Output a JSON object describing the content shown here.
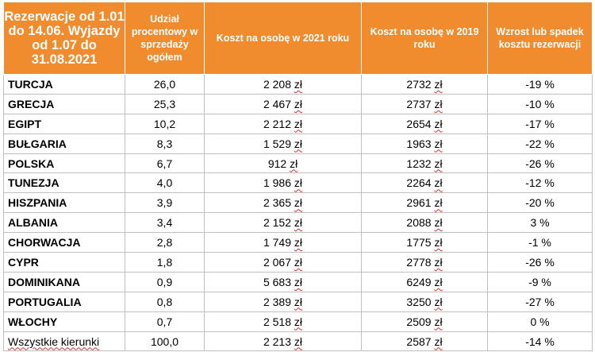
{
  "header": {
    "col1": "Rezerwacje od 1.01 do 14.06. Wyjazdy od 1.07 do 31.08.2021",
    "col2": "Udział procentowy w sprzedaży ogółem",
    "col3": "Koszt na osobę w 2021 roku",
    "col4": "Koszt na osobę w 2019 roku",
    "col5": "Wzrost lub spadek kosztu rezerwacji"
  },
  "currency": "zł",
  "rows": [
    {
      "country": "TURCJA",
      "share": "26,0",
      "cost2021": "2 208",
      "cost2019": "2732",
      "change": "-19 %"
    },
    {
      "country": "GRECJA",
      "share": "25,3",
      "cost2021": "2 467",
      "cost2019": "2737",
      "change": "-10 %"
    },
    {
      "country": "EGIPT",
      "share": "10,2",
      "cost2021": "2 212",
      "cost2019": "2654",
      "change": "-17 %"
    },
    {
      "country": "BUŁGARIA",
      "share": "8,3",
      "cost2021": "1 529",
      "cost2019": "1963",
      "change": "-22 %"
    },
    {
      "country": "POLSKA",
      "share": "6,7",
      "cost2021": "912",
      "cost2019": "1232",
      "change": "-26 %"
    },
    {
      "country": "TUNEZJA",
      "share": "4,0",
      "cost2021": "1 986",
      "cost2019": "2264",
      "change": "-12 %"
    },
    {
      "country": "HISZPANIA",
      "share": "3,9",
      "cost2021": "2 365",
      "cost2019": "2961",
      "change": "-20 %"
    },
    {
      "country": "ALBANIA",
      "share": "3,4",
      "cost2021": "2 152",
      "cost2019": "2088",
      "change": "3 %"
    },
    {
      "country": "CHORWACJA",
      "share": "2,8",
      "cost2021": "1 749",
      "cost2019": "1775",
      "change": "-1 %"
    },
    {
      "country": "CYPR",
      "share": "1,8",
      "cost2021": "2 067",
      "cost2019": "2778",
      "change": "-26 %"
    },
    {
      "country": "DOMINIKANA",
      "share": "0,9",
      "cost2021": "5 683",
      "cost2019": "6249",
      "change": "-9 %"
    },
    {
      "country": "PORTUGALIA",
      "share": "0,8",
      "cost2021": "2 389",
      "cost2019": "3250",
      "change": "-27 %"
    },
    {
      "country": "WŁOCHY",
      "share": "0,7",
      "cost2021": "2 518",
      "cost2019": "2509",
      "change": "0 %"
    },
    {
      "country": "Wszystkie kierunki",
      "share": "100,0",
      "cost2021": "2 213",
      "cost2019": "2587",
      "change": "-14 %"
    }
  ]
}
